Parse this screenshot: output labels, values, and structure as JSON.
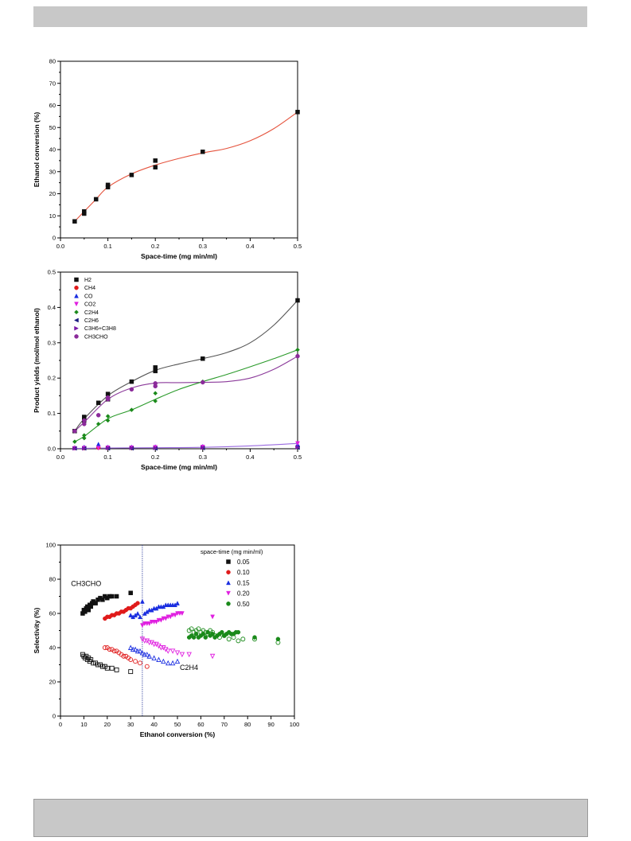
{
  "chart_data": [
    {
      "type": "scatter",
      "xlabel": "Space-time (mg min/ml)",
      "ylabel": "Ethanol conversion (%)",
      "xlim": [
        0.0,
        0.5
      ],
      "ylim": [
        0,
        80
      ],
      "xticks": [
        "0.0",
        "0.1",
        "0.2",
        "0.3",
        "0.4",
        "0.5"
      ],
      "yticks": [
        "0",
        "10",
        "20",
        "30",
        "40",
        "50",
        "60",
        "70",
        "80"
      ],
      "series": [
        {
          "color": "#111111",
          "marker": "square",
          "x": [
            0.03,
            0.05,
            0.05,
            0.075,
            0.1,
            0.1,
            0.15,
            0.2,
            0.2,
            0.3,
            0.5
          ],
          "y": [
            7.5,
            11,
            12,
            17.5,
            23,
            24,
            28.5,
            32,
            35,
            39,
            57
          ]
        }
      ],
      "fit": [
        {
          "color": "#e5533d",
          "x": [
            0.03,
            0.05,
            0.075,
            0.1,
            0.15,
            0.2,
            0.25,
            0.3,
            0.35,
            0.4,
            0.45,
            0.5
          ],
          "y": [
            7.5,
            12,
            17.5,
            23,
            29,
            33,
            36,
            38.5,
            40.5,
            44,
            49.5,
            57
          ]
        }
      ]
    },
    {
      "type": "scatter",
      "xlabel": "Space-time (mg min/ml)",
      "ylabel": "Product yields (mol/mol ethanol)",
      "xlim": [
        0.0,
        0.5
      ],
      "ylim": [
        0.0,
        0.5
      ],
      "xticks": [
        "0.0",
        "0.1",
        "0.2",
        "0.3",
        "0.4",
        "0.5"
      ],
      "yticks": [
        "0.0",
        "0.1",
        "0.2",
        "0.3",
        "0.4",
        "0.5"
      ],
      "legend_position": "top-left",
      "series": [
        {
          "name": "H2",
          "color": "#111111",
          "marker": "square",
          "x": [
            0.03,
            0.05,
            0.05,
            0.08,
            0.1,
            0.1,
            0.15,
            0.2,
            0.2,
            0.3,
            0.5
          ],
          "y": [
            0.05,
            0.08,
            0.09,
            0.13,
            0.14,
            0.155,
            0.19,
            0.22,
            0.23,
            0.255,
            0.42
          ]
        },
        {
          "name": "CH4",
          "color": "#e01a1a",
          "marker": "circle",
          "x": [
            0.03,
            0.05,
            0.08,
            0.1,
            0.15,
            0.2,
            0.3,
            0.5
          ],
          "y": [
            0.002,
            0.002,
            0.003,
            0.003,
            0.003,
            0.004,
            0.004,
            0.006
          ]
        },
        {
          "name": "CO",
          "color": "#1a2ee0",
          "marker": "triangle-up",
          "x": [
            0.03,
            0.05,
            0.08,
            0.1,
            0.15,
            0.2,
            0.3,
            0.5
          ],
          "y": [
            0.003,
            0.005,
            0.013,
            0.005,
            0.005,
            0.006,
            0.007,
            0.012
          ]
        },
        {
          "name": "CO2",
          "color": "#e020e0",
          "marker": "triangle-down",
          "x": [
            0.03,
            0.05,
            0.08,
            0.1,
            0.15,
            0.2,
            0.3,
            0.5
          ],
          "y": [
            0.001,
            0.002,
            0.002,
            0.003,
            0.003,
            0.004,
            0.005,
            0.015
          ]
        },
        {
          "name": "C2H4",
          "color": "#1a8a1a",
          "marker": "diamond",
          "x": [
            0.03,
            0.05,
            0.05,
            0.08,
            0.1,
            0.1,
            0.15,
            0.2,
            0.2,
            0.3,
            0.5
          ],
          "y": [
            0.02,
            0.03,
            0.038,
            0.07,
            0.08,
            0.092,
            0.11,
            0.135,
            0.157,
            0.19,
            0.28
          ]
        },
        {
          "name": "C2H6",
          "color": "#1a1a80",
          "marker": "triangle-left",
          "x": [
            0.03,
            0.05,
            0.1,
            0.15,
            0.2,
            0.3,
            0.5
          ],
          "y": [
            0.001,
            0.001,
            0.001,
            0.001,
            0.001,
            0.002,
            0.003
          ]
        },
        {
          "name": "C3H6+C3H8",
          "color": "#7a1aa8",
          "marker": "triangle-right",
          "x": [
            0.03,
            0.05,
            0.1,
            0.15,
            0.2,
            0.3,
            0.5
          ],
          "y": [
            0.001,
            0.001,
            0.002,
            0.002,
            0.002,
            0.003,
            0.004
          ]
        },
        {
          "name": "CH3CHO",
          "color": "#8b2a9a",
          "marker": "circle",
          "x": [
            0.03,
            0.05,
            0.05,
            0.08,
            0.1,
            0.1,
            0.15,
            0.2,
            0.2,
            0.3,
            0.5
          ],
          "y": [
            0.05,
            0.07,
            0.08,
            0.095,
            0.14,
            0.145,
            0.168,
            0.177,
            0.185,
            0.188,
            0.262
          ]
        }
      ],
      "fits": [
        {
          "color": "#555555",
          "x": [
            0.03,
            0.05,
            0.1,
            0.15,
            0.2,
            0.25,
            0.3,
            0.35,
            0.4,
            0.45,
            0.5
          ],
          "y": [
            0.05,
            0.085,
            0.15,
            0.19,
            0.222,
            0.24,
            0.255,
            0.272,
            0.3,
            0.35,
            0.42
          ]
        },
        {
          "color": "#8b3a9a",
          "x": [
            0.03,
            0.05,
            0.1,
            0.15,
            0.2,
            0.25,
            0.3,
            0.35,
            0.4,
            0.45,
            0.5
          ],
          "y": [
            0.05,
            0.075,
            0.14,
            0.172,
            0.186,
            0.187,
            0.188,
            0.19,
            0.2,
            0.225,
            0.262
          ]
        },
        {
          "color": "#2a9a2a",
          "x": [
            0.03,
            0.05,
            0.1,
            0.15,
            0.2,
            0.25,
            0.3,
            0.35,
            0.4,
            0.45,
            0.5
          ],
          "y": [
            0.02,
            0.035,
            0.085,
            0.11,
            0.14,
            0.168,
            0.19,
            0.21,
            0.232,
            0.255,
            0.28
          ]
        },
        {
          "color": "#9a6ae0",
          "x": [
            0.03,
            0.1,
            0.2,
            0.3,
            0.4,
            0.5
          ],
          "y": [
            0.001,
            0.002,
            0.003,
            0.004,
            0.008,
            0.015
          ]
        }
      ]
    },
    {
      "type": "scatter",
      "xlabel": "Ethanol conversion (%)",
      "ylabel": "Selectivity (%)",
      "xlim": [
        0,
        100
      ],
      "ylim": [
        0,
        100
      ],
      "xticks": [
        "0",
        "10",
        "20",
        "30",
        "40",
        "50",
        "60",
        "70",
        "80",
        "90",
        "100"
      ],
      "yticks": [
        "0",
        "20",
        "40",
        "60",
        "80",
        "100"
      ],
      "legend_title": "space-time (mg min/ml)",
      "legend_position": "top-right",
      "annotations": [
        "CH3CHO",
        "C2H4"
      ],
      "vline_x": 35,
      "series": [
        {
          "name": "0.05",
          "color": "#111111",
          "marker": "square",
          "filled": true,
          "x": [
            9.5,
            10,
            10.5,
            11,
            11.5,
            12,
            12.5,
            13,
            13.5,
            14,
            15,
            16,
            17,
            18,
            19,
            20,
            21,
            22,
            24,
            30
          ],
          "y": [
            60,
            62,
            61,
            63,
            64,
            62,
            65,
            64,
            66,
            67,
            66,
            68,
            69,
            68,
            70,
            69,
            70,
            70,
            70,
            72
          ]
        },
        {
          "name": "0.05",
          "color": "#111111",
          "marker": "square",
          "filled": false,
          "x": [
            9.5,
            10,
            10.5,
            11,
            11.5,
            12,
            12.5,
            13,
            14,
            15,
            16,
            17,
            18,
            19,
            20,
            22,
            24,
            30
          ],
          "y": [
            36,
            35,
            34,
            35,
            33,
            34,
            32,
            33,
            31,
            31,
            30,
            30,
            29,
            29,
            28,
            28,
            27,
            26
          ]
        },
        {
          "name": "0.10",
          "color": "#e01a1a",
          "marker": "circle",
          "filled": true,
          "x": [
            19,
            20,
            21,
            22,
            23,
            24,
            25,
            26,
            27,
            28,
            29,
            30,
            31,
            32,
            33
          ],
          "y": [
            57,
            58,
            58,
            59,
            59,
            60,
            60,
            61,
            61,
            62,
            63,
            63,
            64,
            65,
            66
          ]
        },
        {
          "name": "0.10",
          "color": "#e01a1a",
          "marker": "circle",
          "filled": false,
          "x": [
            19,
            20,
            21,
            22,
            23,
            24,
            25,
            26,
            27,
            28,
            29,
            30,
            32,
            34,
            37
          ],
          "y": [
            40,
            40,
            39,
            39,
            38,
            38,
            37,
            36,
            35,
            35,
            34,
            33,
            32,
            31,
            29
          ]
        },
        {
          "name": "0.15",
          "color": "#1a2ee0",
          "marker": "triangle-up",
          "filled": true,
          "x": [
            30,
            31,
            32,
            33,
            34,
            35,
            36,
            37,
            38,
            39,
            40,
            41,
            42,
            43,
            44,
            45,
            46,
            47,
            48,
            49,
            50
          ],
          "y": [
            59,
            58,
            59,
            60,
            58,
            67,
            60,
            61,
            62,
            62,
            63,
            63,
            64,
            64,
            64,
            65,
            65,
            65,
            65,
            65,
            66
          ]
        },
        {
          "name": "0.15",
          "color": "#1a2ee0",
          "marker": "triangle-up",
          "filled": false,
          "x": [
            30,
            31,
            32,
            33,
            34,
            35,
            36,
            37,
            38,
            40,
            42,
            44,
            46,
            48,
            50
          ],
          "y": [
            40,
            39,
            39,
            38,
            38,
            37,
            36,
            36,
            35,
            34,
            33,
            32,
            31,
            31,
            32
          ]
        },
        {
          "name": "0.20",
          "color": "#e020e0",
          "marker": "triangle-down",
          "filled": true,
          "x": [
            35,
            36,
            37,
            38,
            39,
            40,
            41,
            42,
            43,
            44,
            45,
            46,
            47,
            48,
            49,
            50,
            51,
            52,
            65
          ],
          "y": [
            53,
            54,
            54,
            54,
            55,
            55,
            55,
            56,
            56,
            57,
            57,
            58,
            58,
            59,
            59,
            60,
            60,
            60,
            58
          ]
        },
        {
          "name": "0.20",
          "color": "#e020e0",
          "marker": "triangle-down",
          "filled": false,
          "x": [
            35,
            36,
            37,
            38,
            39,
            40,
            41,
            42,
            43,
            44,
            45,
            46,
            48,
            50,
            52,
            55,
            65
          ],
          "y": [
            45,
            44,
            44,
            43,
            43,
            42,
            42,
            41,
            40,
            40,
            39,
            38,
            38,
            37,
            36,
            36,
            35
          ]
        },
        {
          "name": "0.50",
          "color": "#1a8a1a",
          "marker": "circle",
          "filled": true,
          "x": [
            55,
            56,
            57,
            58,
            59,
            60,
            61,
            62,
            63,
            64,
            65,
            66,
            67,
            68,
            69,
            70,
            71,
            72,
            73,
            74,
            75,
            76,
            83,
            93
          ],
          "y": [
            46,
            47,
            46,
            48,
            46,
            47,
            48,
            46,
            49,
            47,
            48,
            46,
            47,
            48,
            49,
            47,
            48,
            49,
            48,
            48,
            49,
            49,
            46,
            45
          ]
        },
        {
          "name": "0.50",
          "color": "#1a8a1a",
          "marker": "circle",
          "filled": false,
          "x": [
            55,
            56,
            57,
            58,
            59,
            60,
            61,
            62,
            63,
            64,
            65,
            66,
            68,
            70,
            72,
            74,
            76,
            78,
            83,
            93
          ],
          "y": [
            50,
            51,
            49,
            50,
            51,
            49,
            50,
            49,
            48,
            50,
            49,
            47,
            46,
            47,
            45,
            46,
            44,
            45,
            45,
            43
          ]
        }
      ],
      "legend": [
        {
          "name": "0.05",
          "color": "#111111",
          "marker": "square"
        },
        {
          "name": "0.10",
          "color": "#e01a1a",
          "marker": "circle"
        },
        {
          "name": "0.15",
          "color": "#1a2ee0",
          "marker": "triangle-up"
        },
        {
          "name": "0.20",
          "color": "#e020e0",
          "marker": "triangle-down"
        },
        {
          "name": "0.50",
          "color": "#1a8a1a",
          "marker": "circle"
        }
      ]
    }
  ]
}
